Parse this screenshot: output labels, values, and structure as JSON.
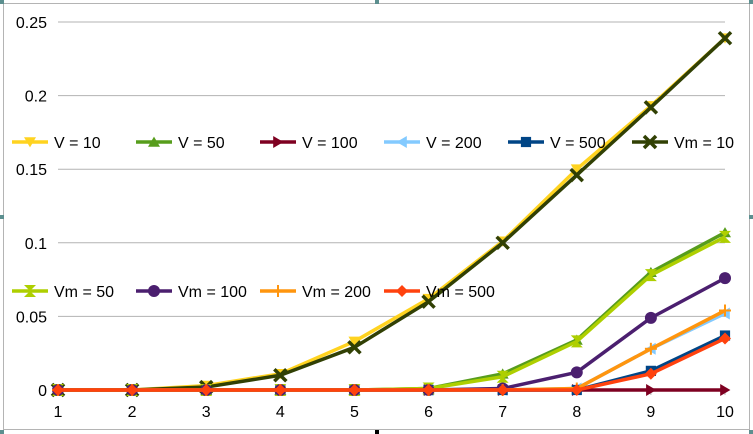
{
  "chart_data": {
    "type": "line",
    "title": "",
    "xlabel": "",
    "ylabel": "",
    "x": [
      1,
      2,
      3,
      4,
      5,
      6,
      7,
      8,
      9,
      10
    ],
    "ylim": [
      0,
      0.25
    ],
    "y_ticks": [
      "0",
      "0.05",
      "0.1",
      "0.15",
      "0.2",
      "0.25"
    ],
    "x_ticks": [
      "1",
      "2",
      "3",
      "4",
      "5",
      "6",
      "7",
      "8",
      "9",
      "10"
    ],
    "grid": true,
    "legend": "inside, two rows across the plot",
    "series": [
      {
        "name": "V = 10",
        "color": "#ffd320",
        "marker": "triangle-down",
        "values": [
          0,
          0,
          0.003,
          0.011,
          0.033,
          0.062,
          0.101,
          0.15,
          0.193,
          0.239
        ]
      },
      {
        "name": "V = 50",
        "color": "#579d1c",
        "marker": "triangle-up",
        "values": [
          0,
          0,
          0,
          0,
          0,
          0.001,
          0.011,
          0.034,
          0.08,
          0.107
        ]
      },
      {
        "name": "V = 100",
        "color": "#7e0021",
        "marker": "triangle-right",
        "values": [
          0,
          0,
          0,
          0,
          0,
          0,
          0,
          0,
          0,
          0
        ]
      },
      {
        "name": "V = 200",
        "color": "#83caff",
        "marker": "triangle-left",
        "values": [
          0,
          0,
          0,
          0,
          0,
          0,
          0,
          0.001,
          0.028,
          0.052
        ]
      },
      {
        "name": "V = 500",
        "color": "#004586",
        "marker": "square",
        "values": [
          0,
          0,
          0,
          0,
          0,
          0,
          0,
          0,
          0.013,
          0.037
        ]
      },
      {
        "name": "Vm = 10",
        "color": "#314004",
        "marker": "x",
        "values": [
          0,
          0,
          0.002,
          0.01,
          0.029,
          0.06,
          0.1,
          0.146,
          0.192,
          0.239
        ]
      },
      {
        "name": "Vm = 50",
        "color": "#aecf00",
        "marker": "hourglass",
        "values": [
          0,
          0,
          0,
          0,
          0,
          0.001,
          0.009,
          0.033,
          0.078,
          0.104
        ]
      },
      {
        "name": "Vm = 100",
        "color": "#4b1f6f",
        "marker": "circle",
        "values": [
          0,
          0,
          0,
          0,
          0,
          0,
          0.001,
          0.012,
          0.049,
          0.076
        ]
      },
      {
        "name": "Vm = 200",
        "color": "#ff950e",
        "marker": "plus",
        "values": [
          0,
          0,
          0,
          0,
          0,
          0,
          0,
          0.001,
          0.028,
          0.054
        ]
      },
      {
        "name": "Vm = 500",
        "color": "#ff420e",
        "marker": "diamond",
        "values": [
          0,
          0,
          0,
          0,
          0,
          0,
          0,
          0,
          0.011,
          0.035
        ]
      }
    ]
  }
}
